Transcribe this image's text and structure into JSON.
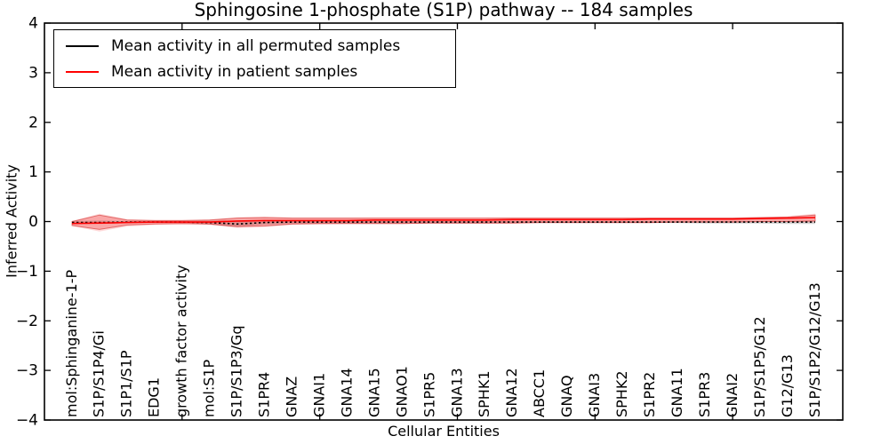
{
  "title": "Sphingosine 1-phosphate (S1P) pathway -- 184 samples",
  "legend": {
    "items": [
      {
        "label": "Mean activity in all permuted samples",
        "color": "#000000"
      },
      {
        "label": "Mean activity in patient samples",
        "color": "#ff0000"
      }
    ]
  },
  "chart_data": {
    "type": "line",
    "title": "Sphingosine 1-phosphate (S1P) pathway -- 184 samples",
    "xlabel": "Cellular Entities",
    "ylabel": "Inferred Activity",
    "ylim": [
      -4,
      4
    ],
    "yticks": [
      4,
      3,
      2,
      1,
      0,
      -1,
      -2,
      -3,
      -4
    ],
    "ytick_labels": [
      "4",
      "3",
      "2",
      "1",
      "0",
      "−1",
      "−2",
      "−3",
      "−4"
    ],
    "grid": false,
    "legend_position": "upper left",
    "categories": [
      "mol:Sphinganine-1-P",
      "S1P/S1P4/Gi",
      "S1P1/S1P",
      "EDG1",
      "growth factor activity",
      "mol:S1P",
      "S1P/S1P3/Gq",
      "S1PR4",
      "GNAZ",
      "GNAI1",
      "GNA14",
      "GNA15",
      "GNAO1",
      "S1PR5",
      "GNA13",
      "SPHK1",
      "GNA12",
      "ABCC1",
      "GNAQ",
      "GNAI3",
      "SPHK2",
      "S1PR2",
      "GNA11",
      "S1PR3",
      "GNAI2",
      "S1P/S1P5/G12",
      "G12/G13",
      "S1P/S1P2/G12/G13"
    ],
    "xticks_major_indices": [
      4,
      9,
      14,
      19,
      24
    ],
    "series": [
      {
        "name": "Mean activity in all permuted samples",
        "color": "#000000",
        "style": "dashed",
        "values": [
          -0.02,
          -0.02,
          -0.01,
          -0.01,
          -0.01,
          -0.02,
          -0.05,
          -0.02,
          -0.01,
          -0.01,
          -0.01,
          -0.01,
          -0.01,
          -0.01,
          -0.01,
          -0.01,
          -0.01,
          -0.01,
          -0.01,
          -0.01,
          -0.01,
          -0.01,
          -0.01,
          -0.01,
          -0.01,
          -0.01,
          -0.01,
          -0.01
        ]
      },
      {
        "name": "Mean activity in patient samples",
        "color": "#ff0000",
        "style": "solid",
        "values": [
          -0.04,
          -0.03,
          -0.02,
          -0.01,
          -0.01,
          -0.01,
          0.01,
          0.02,
          0.02,
          0.02,
          0.02,
          0.03,
          0.03,
          0.03,
          0.03,
          0.03,
          0.04,
          0.04,
          0.04,
          0.04,
          0.04,
          0.05,
          0.05,
          0.05,
          0.05,
          0.06,
          0.07,
          0.08
        ]
      }
    ],
    "bands": [
      {
        "name": "permuted-band",
        "color": "#777777",
        "opacity": 0.3,
        "upper": [
          0.01,
          0.02,
          0.01,
          0.01,
          0.01,
          0.02,
          0.02,
          0.01,
          0.01,
          0.01,
          0.01,
          0.01,
          0.01,
          0.01,
          0.01,
          0.01,
          0.01,
          0.01,
          0.01,
          0.01,
          0.01,
          0.01,
          0.01,
          0.01,
          0.01,
          0.01,
          0.01,
          0.02
        ],
        "lower": [
          -0.03,
          -0.05,
          -0.03,
          -0.02,
          -0.02,
          -0.06,
          -0.11,
          -0.06,
          -0.04,
          -0.04,
          -0.04,
          -0.04,
          -0.04,
          -0.04,
          -0.04,
          -0.04,
          -0.03,
          -0.03,
          -0.03,
          -0.03,
          -0.03,
          -0.03,
          -0.03,
          -0.04,
          -0.04,
          -0.04,
          -0.05,
          -0.05
        ]
      },
      {
        "name": "patient-band-outer",
        "color": "#ff2222",
        "opacity": 0.16,
        "upper": [
          0.01,
          0.16,
          0.05,
          0.03,
          0.03,
          0.04,
          0.09,
          0.1,
          0.08,
          0.08,
          0.08,
          0.08,
          0.08,
          0.08,
          0.08,
          0.08,
          0.08,
          0.08,
          0.08,
          0.08,
          0.08,
          0.08,
          0.08,
          0.08,
          0.08,
          0.09,
          0.11,
          0.16
        ],
        "lower": [
          -0.09,
          -0.2,
          -0.1,
          -0.07,
          -0.06,
          -0.07,
          -0.13,
          -0.11,
          -0.07,
          -0.06,
          -0.05,
          -0.05,
          -0.05,
          -0.04,
          -0.04,
          -0.04,
          -0.04,
          -0.03,
          -0.03,
          -0.03,
          -0.03,
          -0.03,
          -0.02,
          -0.02,
          -0.02,
          -0.01,
          -0.01,
          -0.02
        ]
      },
      {
        "name": "patient-band",
        "color": "#ee2222",
        "opacity": 0.28,
        "edge": "#cc2222",
        "edge_opacity": 0.55,
        "upper": [
          0.0,
          0.13,
          0.03,
          0.02,
          0.02,
          0.03,
          0.07,
          0.08,
          0.07,
          0.07,
          0.07,
          0.07,
          0.07,
          0.07,
          0.07,
          0.07,
          0.07,
          0.07,
          0.07,
          0.07,
          0.07,
          0.07,
          0.07,
          0.07,
          0.07,
          0.08,
          0.09,
          0.13
        ],
        "lower": [
          -0.08,
          -0.16,
          -0.07,
          -0.05,
          -0.04,
          -0.05,
          -0.1,
          -0.09,
          -0.05,
          -0.04,
          -0.04,
          -0.04,
          -0.04,
          -0.03,
          -0.03,
          -0.03,
          -0.03,
          -0.02,
          -0.02,
          -0.02,
          -0.02,
          -0.02,
          -0.01,
          -0.01,
          -0.01,
          0.0,
          0.0,
          0.01
        ]
      }
    ]
  }
}
